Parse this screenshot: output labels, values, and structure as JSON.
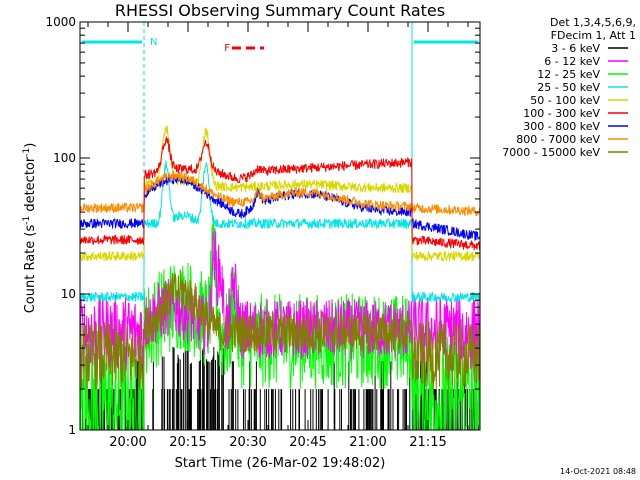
{
  "chart_data": {
    "type": "line",
    "title": "RHESSI Observing Summary Count Rates",
    "xlabel": "Start Time (26-Mar-02 19:48:02)",
    "ylabel": "Count Rate (s",
    "ylabel_sup1": "-1",
    "ylabel_mid": " detector",
    "ylabel_sup2": "-1",
    "ylabel_end": ")",
    "y_scale": "log",
    "ylim": [
      1,
      1000
    ],
    "xlim_minutes": [
      0,
      100
    ],
    "x_ticks": [
      "20:00",
      "20:15",
      "20:30",
      "20:45",
      "21:00",
      "21:15"
    ],
    "x_tick_minutes": [
      12,
      27,
      42,
      57,
      72,
      87
    ],
    "y_ticks": [
      "1",
      "10",
      "100",
      "1000"
    ],
    "y_tick_values": [
      1,
      10,
      100,
      1000
    ],
    "legend_header": [
      "Det 1,3,4,5,6,9,",
      "FDecim 1, Att 1"
    ],
    "legend_position": "right",
    "night_intervals_minutes": [
      [
        0,
        16
      ],
      [
        83,
        100
      ]
    ],
    "night_label": "N",
    "flare_label": "F",
    "flare_interval_minutes": [
      38,
      46
    ],
    "timestamp": "14-Oct-2021 08:48",
    "series": [
      {
        "name": "3 - 6 keV",
        "color": "#000000",
        "kind": "sparse-black",
        "day": 1.3,
        "night": 1.6
      },
      {
        "name": "6 - 12 keV",
        "color": "#ff00ff",
        "kind": "magenta",
        "day": 5.5,
        "night": 5.5
      },
      {
        "name": "12 - 25 keV",
        "color": "#00ff00",
        "kind": "green",
        "day": 5.5,
        "night": 1.5
      },
      {
        "name": "25 - 50 keV",
        "color": "#00e5e5",
        "kind": "cyan",
        "day": 35,
        "night": 9.5
      },
      {
        "name": "50 - 100 keV",
        "color": "#d8d800",
        "kind": "yellow",
        "day": 65,
        "night": 19
      },
      {
        "name": "100 - 300 keV",
        "color": "#ff0000",
        "kind": "red",
        "day": 85,
        "night": 25
      },
      {
        "name": "300 - 800 keV",
        "color": "#0000ff",
        "kind": "blue",
        "day": 52,
        "night": 33
      },
      {
        "name": "800 - 7000 keV",
        "color": "#ff8c00",
        "kind": "orange",
        "day": 55,
        "night": 43
      },
      {
        "name": "7000 - 15000 keV",
        "color": "#808000",
        "kind": "olive",
        "day": 5.5,
        "night": 3.8
      }
    ]
  }
}
